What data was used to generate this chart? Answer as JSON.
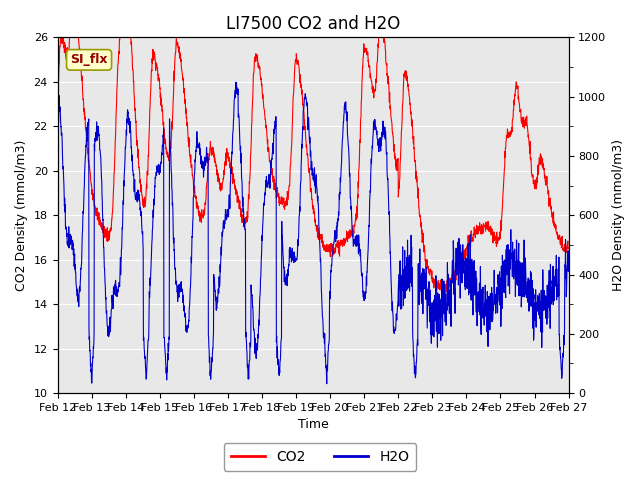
{
  "title": "LI7500 CO2 and H2O",
  "xlabel": "Time",
  "ylabel_left": "CO2 Density (mmol/m3)",
  "ylabel_right": "H2O Density (mmol/m3)",
  "ylim_left": [
    10,
    26
  ],
  "ylim_right": [
    0,
    1200
  ],
  "yticks_left": [
    10,
    12,
    14,
    16,
    18,
    20,
    22,
    24,
    26
  ],
  "yticks_right": [
    0,
    200,
    400,
    600,
    800,
    1000,
    1200
  ],
  "xtick_labels": [
    "Feb 12",
    "Feb 13",
    "Feb 14",
    "Feb 15",
    "Feb 16",
    "Feb 17",
    "Feb 18",
    "Feb 19",
    "Feb 20",
    "Feb 21",
    "Feb 22",
    "Feb 23",
    "Feb 24",
    "Feb 25",
    "Feb 26",
    "Feb 27"
  ],
  "color_co2": "#FF0000",
  "color_h2o": "#0000CC",
  "label_co2": "CO2",
  "label_h2o": "H2O",
  "si_flx_label": "SI_flx",
  "background_color": "#E8E8E8",
  "title_fontsize": 12,
  "axis_fontsize": 9,
  "tick_fontsize": 8,
  "legend_fontsize": 10,
  "grid_color": "#FFFFFF",
  "si_flx_facecolor": "#FFFFCC",
  "si_flx_edgecolor": "#999900",
  "si_flx_textcolor": "#990000"
}
